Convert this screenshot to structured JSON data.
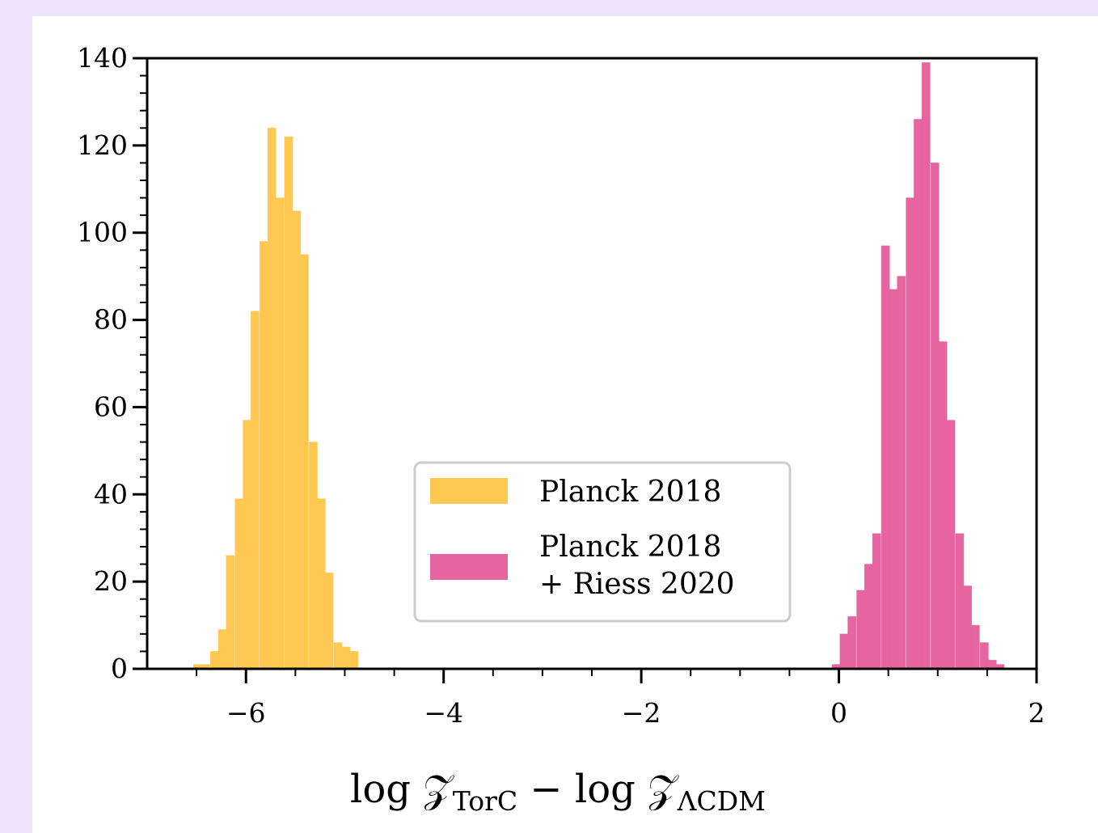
{
  "chart_data": {
    "type": "bar",
    "xlabel": {
      "main": "log 𝒵",
      "sub1": "TorC",
      "mid": " − log 𝒵",
      "sub2": "ΛCDM"
    },
    "ylabel": "",
    "xlim": [
      -7.0,
      2.0
    ],
    "ylim": [
      0,
      140
    ],
    "xticks": [
      -6,
      -4,
      -2,
      0,
      2
    ],
    "xtick_labels": [
      "−6",
      "−4",
      "−2",
      "0",
      "2"
    ],
    "yticks": [
      0,
      20,
      40,
      60,
      80,
      100,
      120,
      140
    ],
    "ytick_labels": [
      "0",
      "20",
      "40",
      "60",
      "80",
      "100",
      "120",
      "140"
    ],
    "legend_position": "center",
    "bin_width": 0.083,
    "series": [
      {
        "name": "Planck 2018",
        "color": "#ffc850",
        "bin_starts": [
          -6.53,
          -6.45,
          -6.36,
          -6.28,
          -6.2,
          -6.11,
          -6.03,
          -5.95,
          -5.86,
          -5.78,
          -5.7,
          -5.61,
          -5.53,
          -5.45,
          -5.36,
          -5.28,
          -5.2,
          -5.11,
          -5.03,
          -4.95,
          -4.86
        ],
        "values": [
          1,
          1,
          4,
          9,
          26,
          39,
          57,
          82,
          98,
          124,
          108,
          122,
          105,
          95,
          52,
          39,
          22,
          6,
          5,
          4,
          0
        ]
      },
      {
        "name": "Planck 2018\n+ Riess 2020",
        "color": "#e6649f",
        "bin_starts": [
          -0.07,
          0.01,
          0.09,
          0.18,
          0.26,
          0.34,
          0.43,
          0.51,
          0.59,
          0.68,
          0.76,
          0.84,
          0.93,
          1.01,
          1.09,
          1.18,
          1.26,
          1.34,
          1.43,
          1.51,
          1.59
        ],
        "values": [
          1,
          8,
          12,
          18,
          24,
          31,
          97,
          87,
          90,
          108,
          126,
          139,
          116,
          75,
          57,
          31,
          19,
          10,
          6,
          2,
          1
        ]
      }
    ]
  }
}
